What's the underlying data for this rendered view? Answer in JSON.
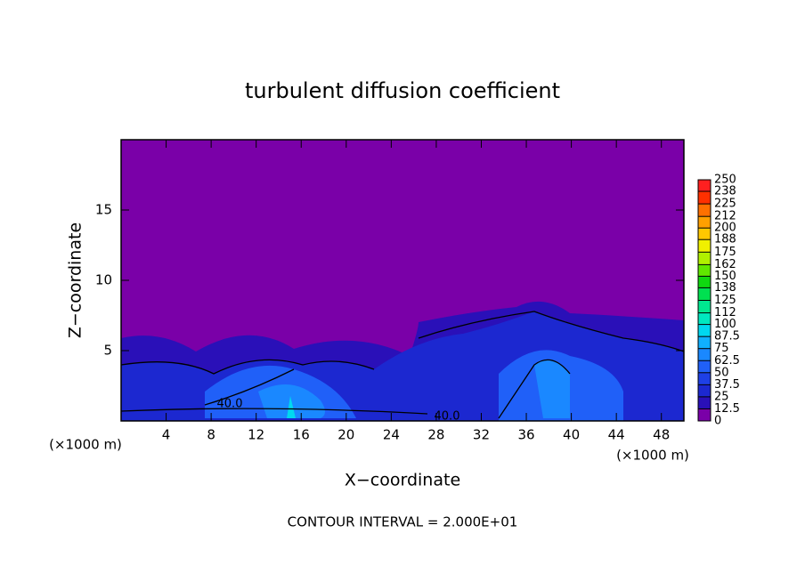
{
  "chart_data": {
    "type": "contour",
    "title": "turbulent diffusion coefficient",
    "x_label": "X−coordinate",
    "y_label": "Z−coordinate",
    "x_unit_label": "(×1000 m)",
    "y_unit_label": "(×1000 m)",
    "footnote": "CONTOUR INTERVAL = 2.000E+01",
    "xlim": [
      0,
      50
    ],
    "xticks": [
      4,
      8,
      12,
      16,
      20,
      24,
      28,
      32,
      36,
      40,
      44,
      48
    ],
    "ylim": [
      0,
      20
    ],
    "yticks": [
      5,
      10,
      15
    ],
    "colorbar_levels": [
      0,
      12.5,
      25,
      37.5,
      50,
      62.5,
      75,
      87.5,
      100,
      112,
      125,
      138,
      150,
      162,
      175,
      188,
      200,
      212,
      225,
      238,
      250
    ],
    "colorbar_colors": [
      "#7a00a8",
      "#2a10b8",
      "#1c28d0",
      "#1e40e6",
      "#2060f8",
      "#1a88ff",
      "#10b0ff",
      "#00d8f0",
      "#00e8c0",
      "#00e890",
      "#00e050",
      "#10d810",
      "#60e800",
      "#b0f000",
      "#f0f000",
      "#ffc800",
      "#ffa000",
      "#ff7000",
      "#ff3000",
      "#ff2020",
      "#f08080"
    ],
    "contour_labels": [
      {
        "value": 40,
        "label": "40.0"
      },
      {
        "value": 40,
        "label": "40.0"
      }
    ]
  }
}
